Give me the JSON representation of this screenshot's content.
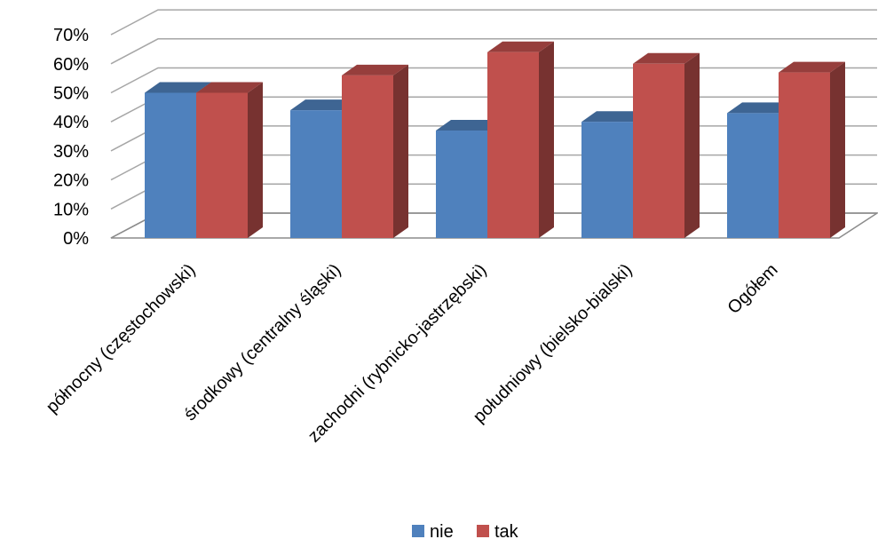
{
  "chart_data": {
    "type": "bar",
    "style": "3d-clustered-column",
    "categories": [
      "północny (częstochowski)",
      "środkowy (centralny śląski)",
      "zachodni (rybnicko-jastrzębski)",
      "południowy (bielsko-bialski)",
      "Ogółem"
    ],
    "series": [
      {
        "name": "nie",
        "color": "#4F81BD",
        "values": [
          50,
          44,
          37,
          40,
          43
        ]
      },
      {
        "name": "tak",
        "color": "#C0504D",
        "values": [
          50,
          56,
          64,
          60,
          57
        ]
      }
    ],
    "ylim": [
      0,
      70
    ],
    "yticks": [
      "0%",
      "10%",
      "20%",
      "30%",
      "40%",
      "50%",
      "60%",
      "70%"
    ],
    "grid": true,
    "legend_position": "bottom",
    "title": "",
    "xlabel": "",
    "ylabel": ""
  }
}
